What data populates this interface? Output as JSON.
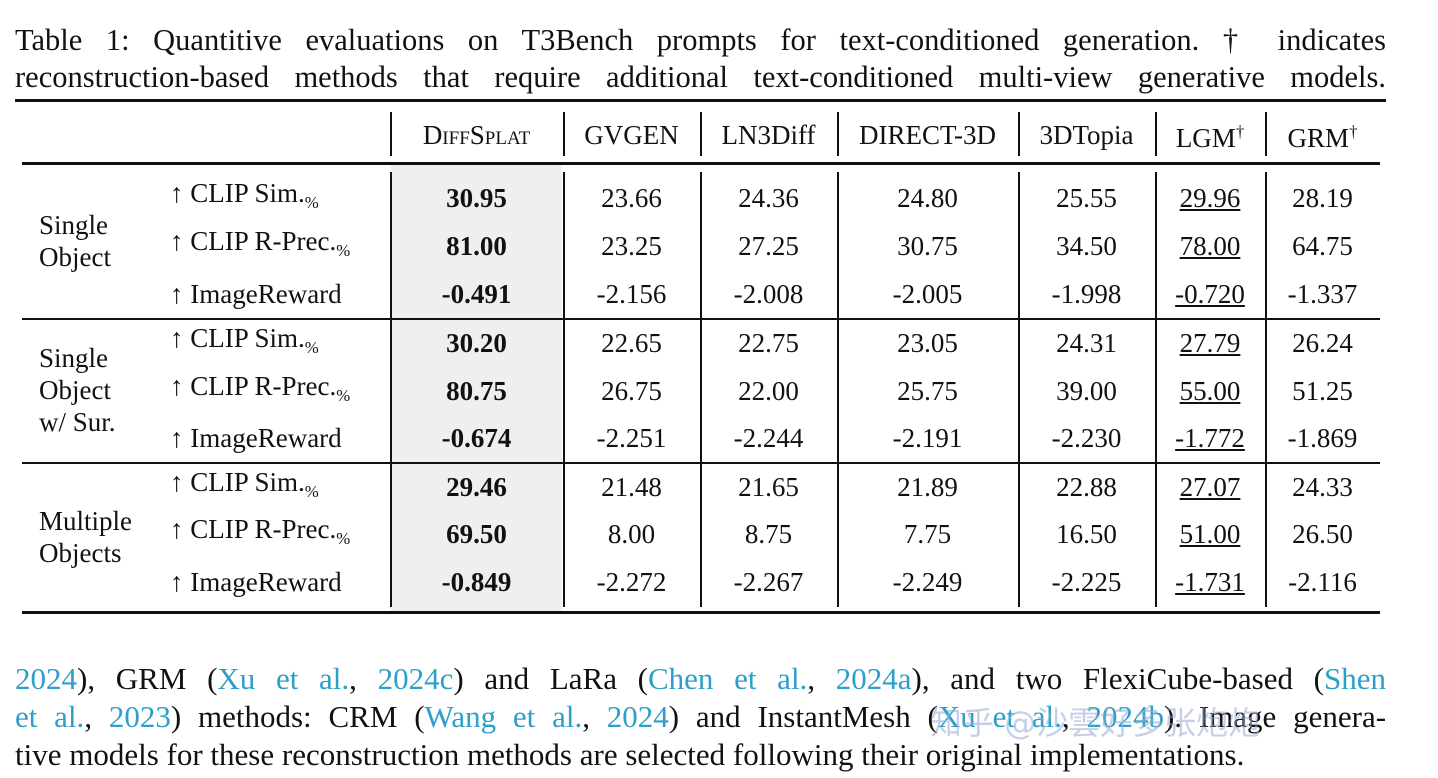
{
  "caption": {
    "lines": [
      "Table 1: Quantitive evaluations on T3Bench prompts for text-conditioned generation. † indicates",
      "reconstruction-based methods that require additional text-conditioned multi-view generative models."
    ]
  },
  "table": {
    "columns": [
      {
        "name": "DiffSplat"
      },
      {
        "name": "GVGEN"
      },
      {
        "name": "LN3Diff"
      },
      {
        "name": "DIRECT-3D"
      },
      {
        "name": "3DTopia"
      },
      {
        "name": "LGM",
        "mark": "†"
      },
      {
        "name": "GRM",
        "mark": "†"
      }
    ],
    "groups": [
      {
        "label": [
          "Single",
          "Object"
        ],
        "rows": [
          {
            "metric": "↑ CLIP Sim.",
            "sub": "%",
            "values": [
              "30.95",
              "23.66",
              "24.36",
              "24.80",
              "25.55",
              "29.96",
              "28.19"
            ]
          },
          {
            "metric": "↑ CLIP R-Prec.",
            "sub": "%",
            "values": [
              "81.00",
              "23.25",
              "27.25",
              "30.75",
              "34.50",
              "78.00",
              "64.75"
            ]
          },
          {
            "metric": "↑ ImageReward",
            "values": [
              "-0.491",
              "-2.156",
              "-2.008",
              "-2.005",
              "-1.998",
              "-0.720",
              "-1.337"
            ]
          }
        ]
      },
      {
        "label": [
          "Single",
          "Object",
          "w/ Sur."
        ],
        "rows": [
          {
            "metric": "↑ CLIP Sim.",
            "sub": "%",
            "values": [
              "30.20",
              "22.65",
              "22.75",
              "23.05",
              "24.31",
              "27.79",
              "26.24"
            ]
          },
          {
            "metric": "↑ CLIP R-Prec.",
            "sub": "%",
            "values": [
              "80.75",
              "26.75",
              "22.00",
              "25.75",
              "39.00",
              "55.00",
              "51.25"
            ]
          },
          {
            "metric": "↑ ImageReward",
            "values": [
              "-0.674",
              "-2.251",
              "-2.244",
              "-2.191",
              "-2.230",
              "-1.772",
              "-1.869"
            ]
          }
        ]
      },
      {
        "label": [
          "Multiple",
          "Objects"
        ],
        "rows": [
          {
            "metric": "↑ CLIP Sim.",
            "sub": "%",
            "values": [
              "29.46",
              "21.48",
              "21.65",
              "21.89",
              "22.88",
              "27.07",
              "24.33"
            ]
          },
          {
            "metric": "↑ CLIP R-Prec.",
            "sub": "%",
            "values": [
              "69.50",
              "8.00",
              "8.75",
              "7.75",
              "16.50",
              "51.00",
              "26.50"
            ]
          },
          {
            "metric": "↑ ImageReward",
            "values": [
              "-0.849",
              "-2.272",
              "-2.267",
              "-2.249",
              "-2.225",
              "-1.731",
              "-2.116"
            ]
          }
        ]
      }
    ]
  },
  "paragraph": {
    "lines": [
      [
        {
          "text": "2024",
          "link": true
        },
        {
          "text": "), GRM ("
        },
        {
          "text": "Xu et al.",
          "link": true
        },
        {
          "text": ", "
        },
        {
          "text": "2024c",
          "link": true
        },
        {
          "text": ") and LaRa ("
        },
        {
          "text": "Chen et al.",
          "link": true
        },
        {
          "text": ", "
        },
        {
          "text": "2024a",
          "link": true
        },
        {
          "text": "), and two FlexiCube-based ("
        },
        {
          "text": "Shen",
          "link": true
        }
      ],
      [
        {
          "text": "et al.",
          "link": true
        },
        {
          "text": ", "
        },
        {
          "text": "2023",
          "link": true
        },
        {
          "text": ") methods: CRM ("
        },
        {
          "text": "Wang et al.",
          "link": true
        },
        {
          "text": ", "
        },
        {
          "text": "2024",
          "link": true
        },
        {
          "text": ") and InstantMesh ("
        },
        {
          "text": "Xu et al.",
          "link": true
        },
        {
          "text": ", "
        },
        {
          "text": "2024b",
          "link": true
        },
        {
          "text": "). Image genera-"
        }
      ],
      [
        {
          "text": "tive models for these reconstruction methods are selected following their original implementations."
        }
      ]
    ]
  },
  "watermark": "知乎 @沙雲好多张炮炮"
}
